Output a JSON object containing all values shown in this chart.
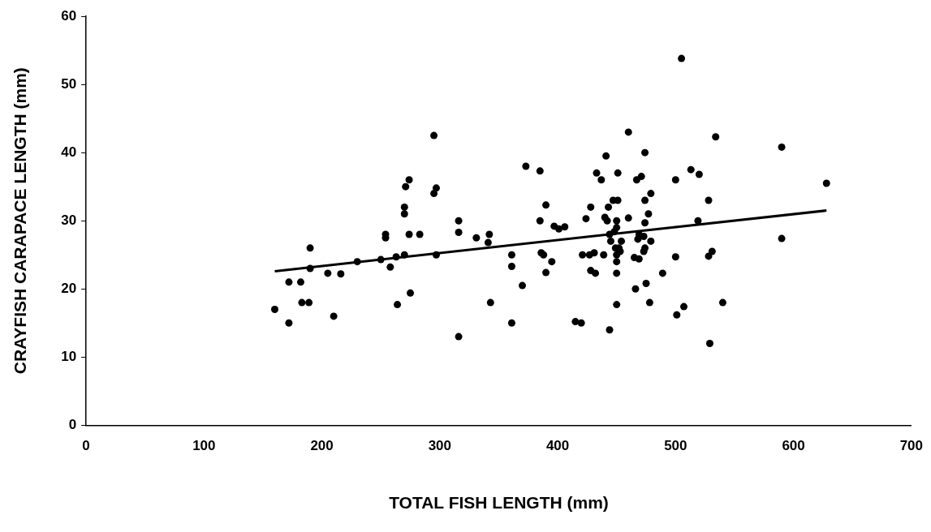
{
  "chart_data": {
    "type": "scatter",
    "xlabel": "TOTAL FISH LENGTH (mm)",
    "ylabel": "CRAYFISH CARAPACE LENGTH (mm)",
    "xlim": [
      0,
      700
    ],
    "ylim": [
      0,
      60
    ],
    "xticks": [
      0,
      100,
      200,
      300,
      400,
      500,
      600,
      700
    ],
    "yticks": [
      0,
      10,
      20,
      30,
      40,
      50,
      60
    ],
    "grid": false,
    "legend": false,
    "marker": "circle",
    "series": [
      {
        "color": "#000000",
        "x": [
          160,
          172,
          172,
          182,
          183,
          189,
          190,
          190,
          205,
          210,
          216,
          230,
          250,
          254,
          254,
          258,
          263,
          264,
          270,
          270,
          270,
          271,
          274,
          274,
          275,
          283,
          295,
          295,
          297,
          297,
          316,
          316,
          316,
          331,
          341,
          342,
          343,
          361,
          361,
          361,
          370,
          373,
          385,
          385,
          386,
          388,
          390,
          390,
          395,
          397,
          401,
          406,
          415,
          420,
          421,
          424,
          427,
          428,
          428,
          431,
          432,
          433,
          437,
          439,
          440,
          441,
          442,
          443,
          444,
          444,
          445,
          447,
          448,
          449,
          450,
          450,
          450,
          450,
          450,
          450,
          451,
          451,
          452,
          453,
          454,
          460,
          460,
          465,
          466,
          467,
          468,
          469,
          469,
          471,
          473,
          473,
          474,
          474,
          474,
          474,
          475,
          477,
          478,
          479,
          479,
          489,
          500,
          500,
          501,
          505,
          507,
          513,
          519,
          520,
          528,
          528,
          529,
          531,
          534,
          540,
          590,
          590,
          628
        ],
        "values": [
          17,
          15,
          21,
          21,
          18,
          18,
          26,
          23,
          22.3,
          16,
          22.2,
          24,
          24.3,
          28,
          27.5,
          23.2,
          24.7,
          17.7,
          25,
          31,
          32,
          35,
          36,
          28,
          19.4,
          28,
          34,
          42.5,
          34.8,
          25,
          28.3,
          30,
          13,
          27.5,
          26.8,
          28,
          18,
          25,
          23.3,
          15,
          20.5,
          38,
          37.3,
          30,
          25.3,
          25,
          32.3,
          22.4,
          24,
          29.2,
          28.8,
          29.1,
          15.2,
          15,
          25,
          30.3,
          25,
          22.7,
          32,
          25.3,
          22.3,
          37,
          36,
          25,
          30.5,
          39.5,
          30,
          32,
          28,
          14,
          27,
          33,
          28.4,
          26,
          24,
          25,
          22.3,
          17.7,
          29,
          30,
          37,
          33,
          26,
          25.5,
          27,
          43,
          30.4,
          24.6,
          20,
          36,
          27.3,
          24.4,
          28,
          36.5,
          27.7,
          25.5,
          33,
          40,
          26,
          29.7,
          20.8,
          31,
          18,
          27,
          34,
          22.3,
          36,
          24.7,
          16.2,
          53.8,
          17.4,
          37.5,
          30,
          36.8,
          24.8,
          33,
          12,
          25.5,
          42.3,
          18,
          40.8,
          27.4,
          35.5
        ]
      },
      {
        "type": "line",
        "color": "#000000",
        "marker": "none",
        "line_style": "solid",
        "x": [
          160,
          628
        ],
        "values": [
          22.6,
          31.5
        ]
      }
    ]
  }
}
